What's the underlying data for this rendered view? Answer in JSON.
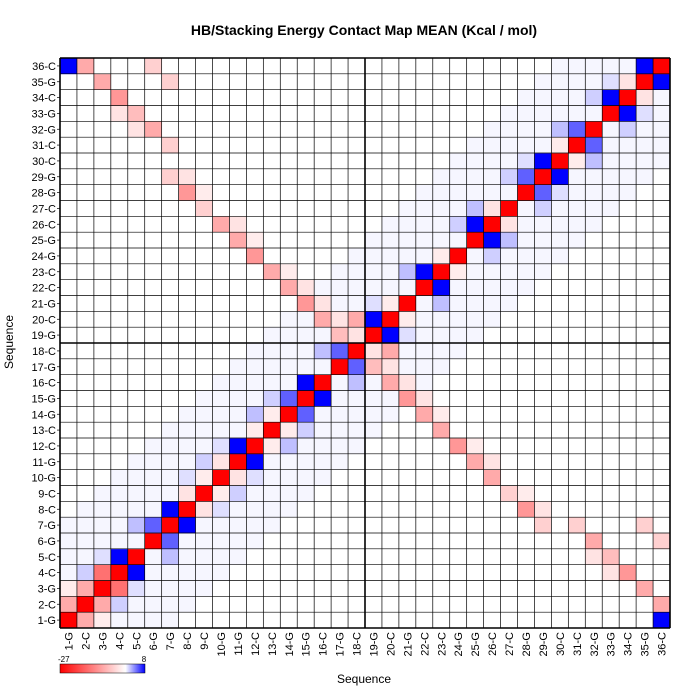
{
  "chart_data": {
    "type": "heatmap",
    "title": "HB/Stacking Energy Contact Map MEAN (Kcal / mol)",
    "xlabel": "Sequence",
    "ylabel": "Sequence",
    "labels": [
      "1-G",
      "2-C",
      "3-G",
      "4-C",
      "5-C",
      "6-G",
      "7-G",
      "8-C",
      "9-C",
      "10-G",
      "11-G",
      "12-C",
      "13-C",
      "14-G",
      "15-G",
      "16-C",
      "17-G",
      "18-C",
      "19-G",
      "20-C",
      "21-G",
      "22-C",
      "23-C",
      "24-G",
      "25-G",
      "26-C",
      "27-C",
      "28-G",
      "29-G",
      "30-C",
      "31-C",
      "32-G",
      "33-G",
      "34-C",
      "35-G",
      "36-C"
    ],
    "value_range": [
      -27,
      8
    ],
    "colorbar": {
      "min_label": "-27",
      "max_label": "8",
      "low_color": "#ff0000",
      "mid_color": "#ffffff",
      "high_color": "#0000ff"
    },
    "grid": true,
    "cells": [
      [
        1,
        1,
        -27
      ],
      [
        2,
        2,
        -27
      ],
      [
        3,
        3,
        -27
      ],
      [
        4,
        4,
        -27
      ],
      [
        5,
        5,
        -27
      ],
      [
        6,
        6,
        -27
      ],
      [
        7,
        7,
        -27
      ],
      [
        8,
        8,
        -27
      ],
      [
        9,
        9,
        -27
      ],
      [
        10,
        10,
        -27
      ],
      [
        11,
        11,
        -27
      ],
      [
        12,
        12,
        -27
      ],
      [
        13,
        13,
        -27
      ],
      [
        14,
        14,
        -27
      ],
      [
        15,
        15,
        -27
      ],
      [
        16,
        16,
        -27
      ],
      [
        17,
        17,
        -27
      ],
      [
        18,
        18,
        -27
      ],
      [
        19,
        19,
        -27
      ],
      [
        20,
        20,
        -27
      ],
      [
        21,
        21,
        -27
      ],
      [
        22,
        22,
        -27
      ],
      [
        23,
        23,
        -27
      ],
      [
        24,
        24,
        -27
      ],
      [
        25,
        25,
        -27
      ],
      [
        26,
        26,
        -27
      ],
      [
        27,
        27,
        -27
      ],
      [
        28,
        28,
        -27
      ],
      [
        29,
        29,
        -27
      ],
      [
        30,
        30,
        -27
      ],
      [
        31,
        31,
        -27
      ],
      [
        32,
        32,
        -27
      ],
      [
        33,
        33,
        -27
      ],
      [
        34,
        34,
        -27
      ],
      [
        35,
        35,
        -27
      ],
      [
        36,
        36,
        -27
      ],
      [
        1,
        2,
        -9
      ],
      [
        2,
        1,
        -9
      ],
      [
        2,
        3,
        -9
      ],
      [
        3,
        2,
        -9
      ],
      [
        3,
        4,
        -15
      ],
      [
        4,
        3,
        -15
      ],
      [
        2,
        36,
        -9
      ],
      [
        36,
        2,
        -9
      ],
      [
        3,
        35,
        -9
      ],
      [
        35,
        3,
        -9
      ],
      [
        4,
        34,
        -11
      ],
      [
        34,
        4,
        -11
      ],
      [
        5,
        33,
        -7
      ],
      [
        33,
        5,
        -7
      ],
      [
        6,
        32,
        -9
      ],
      [
        32,
        6,
        -9
      ],
      [
        7,
        31,
        -5
      ],
      [
        31,
        7,
        -5
      ],
      [
        7,
        29,
        -5
      ],
      [
        29,
        7,
        -5
      ],
      [
        8,
        28,
        -11
      ],
      [
        28,
        8,
        -11
      ],
      [
        9,
        27,
        -5
      ],
      [
        27,
        9,
        -5
      ],
      [
        10,
        26,
        -9
      ],
      [
        26,
        10,
        -9
      ],
      [
        11,
        25,
        -9
      ],
      [
        25,
        11,
        -9
      ],
      [
        12,
        24,
        -11
      ],
      [
        24,
        12,
        -11
      ],
      [
        13,
        23,
        -9
      ],
      [
        23,
        13,
        -9
      ],
      [
        14,
        22,
        -9
      ],
      [
        22,
        14,
        -9
      ],
      [
        15,
        21,
        -11
      ],
      [
        21,
        15,
        -11
      ],
      [
        16,
        20,
        -9
      ],
      [
        20,
        16,
        -9
      ],
      [
        17,
        19,
        -7
      ],
      [
        19,
        17,
        -7
      ],
      [
        18,
        20,
        -9
      ],
      [
        20,
        18,
        -9
      ],
      [
        6,
        36,
        -5
      ],
      [
        36,
        6,
        -5
      ],
      [
        7,
        35,
        -5
      ],
      [
        35,
        7,
        -5
      ],
      [
        1,
        36,
        8
      ],
      [
        36,
        1,
        8
      ],
      [
        4,
        5,
        8
      ],
      [
        5,
        4,
        8
      ],
      [
        6,
        7,
        5
      ],
      [
        7,
        6,
        5
      ],
      [
        7,
        8,
        8
      ],
      [
        8,
        7,
        8
      ],
      [
        11,
        12,
        8
      ],
      [
        12,
        11,
        8
      ],
      [
        14,
        15,
        5
      ],
      [
        15,
        14,
        5
      ],
      [
        15,
        16,
        8
      ],
      [
        16,
        15,
        8
      ],
      [
        17,
        18,
        5
      ],
      [
        18,
        17,
        5
      ],
      [
        19,
        20,
        8
      ],
      [
        20,
        19,
        8
      ],
      [
        22,
        23,
        8
      ],
      [
        23,
        22,
        8
      ],
      [
        25,
        26,
        8
      ],
      [
        26,
        25,
        8
      ],
      [
        28,
        29,
        5
      ],
      [
        29,
        28,
        5
      ],
      [
        29,
        30,
        8
      ],
      [
        30,
        29,
        8
      ],
      [
        33,
        34,
        8
      ],
      [
        34,
        33,
        8
      ],
      [
        31,
        32,
        5
      ],
      [
        32,
        31,
        5
      ],
      [
        35,
        36,
        8
      ],
      [
        36,
        35,
        8
      ],
      [
        2,
        4,
        1.5
      ],
      [
        4,
        2,
        1.5
      ],
      [
        5,
        7,
        2
      ],
      [
        7,
        5,
        2
      ],
      [
        9,
        11,
        1.5
      ],
      [
        11,
        9,
        1.5
      ],
      [
        12,
        14,
        2
      ],
      [
        14,
        12,
        2
      ],
      [
        13,
        15,
        1.5
      ],
      [
        15,
        13,
        1.5
      ],
      [
        16,
        18,
        2
      ],
      [
        18,
        16,
        2
      ],
      [
        21,
        23,
        2
      ],
      [
        23,
        21,
        2
      ],
      [
        24,
        26,
        1.5
      ],
      [
        26,
        24,
        1.5
      ],
      [
        25,
        27,
        2
      ],
      [
        27,
        25,
        2
      ],
      [
        27,
        29,
        1.5
      ],
      [
        29,
        27,
        1.5
      ],
      [
        30,
        32,
        2
      ],
      [
        32,
        30,
        2
      ],
      [
        32,
        34,
        1.5
      ],
      [
        34,
        32,
        1.5
      ],
      [
        3,
        5,
        1
      ],
      [
        5,
        3,
        1
      ],
      [
        8,
        10,
        1
      ],
      [
        10,
        8,
        1
      ],
      [
        10,
        12,
        1
      ],
      [
        12,
        10,
        1
      ],
      [
        19,
        21,
        1
      ],
      [
        21,
        19,
        1
      ],
      [
        28,
        30,
        1
      ],
      [
        30,
        28,
        1
      ],
      [
        33,
        35,
        1
      ],
      [
        35,
        33,
        1
      ],
      [
        1,
        3,
        -2
      ],
      [
        3,
        1,
        -2
      ],
      [
        8,
        9,
        -3
      ],
      [
        9,
        8,
        -3
      ],
      [
        9,
        10,
        -2
      ],
      [
        10,
        9,
        -2
      ],
      [
        10,
        11,
        -3
      ],
      [
        11,
        10,
        -3
      ],
      [
        12,
        13,
        -2
      ],
      [
        13,
        12,
        -2
      ],
      [
        13,
        14,
        -2
      ],
      [
        14,
        13,
        -2
      ],
      [
        20,
        21,
        -2
      ],
      [
        21,
        20,
        -2
      ],
      [
        23,
        24,
        -2
      ],
      [
        24,
        23,
        -2
      ],
      [
        26,
        27,
        -3
      ],
      [
        27,
        26,
        -3
      ],
      [
        30,
        31,
        -2
      ],
      [
        31,
        30,
        -2
      ],
      [
        34,
        35,
        -3
      ],
      [
        35,
        34,
        -3
      ],
      [
        5,
        32,
        -3
      ],
      [
        32,
        5,
        -3
      ],
      [
        8,
        29,
        -3
      ],
      [
        29,
        8,
        -3
      ],
      [
        9,
        28,
        -2
      ],
      [
        28,
        9,
        -2
      ],
      [
        11,
        26,
        -3
      ],
      [
        26,
        11,
        -3
      ],
      [
        12,
        25,
        -2
      ],
      [
        25,
        12,
        -2
      ],
      [
        14,
        23,
        -2
      ],
      [
        23,
        14,
        -2
      ],
      [
        15,
        22,
        -3
      ],
      [
        22,
        15,
        -3
      ],
      [
        16,
        21,
        -3
      ],
      [
        21,
        16,
        -3
      ],
      [
        17,
        20,
        -3
      ],
      [
        20,
        17,
        -3
      ],
      [
        18,
        19,
        -3
      ],
      [
        19,
        18,
        -3
      ],
      [
        4,
        33,
        -3
      ],
      [
        33,
        4,
        -3
      ]
    ]
  }
}
